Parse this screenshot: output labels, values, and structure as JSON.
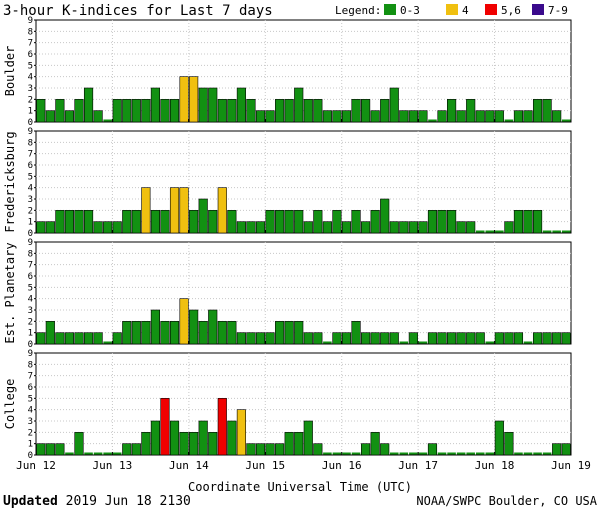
{
  "chart_data": {
    "type": "bar",
    "title": "3-hour K-indices for Last 7 days",
    "legend": {
      "label": "Legend:",
      "placement": "top-right",
      "items": [
        {
          "label": "0-3",
          "color": "#129112"
        },
        {
          "label": "4",
          "color": "#f0c010"
        },
        {
          "label": "5,6",
          "color": "#f00000"
        },
        {
          "label": "7-9",
          "color": "#3a0a8c"
        }
      ]
    },
    "xlabel": "Coordinate Universal Time (UTC)",
    "x_tick_labels": [
      "Jun 12",
      "Jun 13",
      "Jun 14",
      "Jun 15",
      "Jun 16",
      "Jun 17",
      "Jun 18",
      "Jun 19"
    ],
    "ylim": [
      0,
      9
    ],
    "y_ticks": [
      0,
      1,
      2,
      3,
      4,
      5,
      6,
      7,
      8,
      9
    ],
    "bars_per_day": 8,
    "grid": true,
    "series": [
      {
        "name": "Boulder",
        "values": [
          2,
          1,
          2,
          1,
          2,
          3,
          1,
          0,
          2,
          2,
          2,
          2,
          3,
          2,
          2,
          4,
          4,
          3,
          3,
          2,
          2,
          3,
          2,
          1,
          1,
          2,
          2,
          3,
          2,
          2,
          1,
          1,
          1,
          2,
          2,
          1,
          2,
          3,
          1,
          1,
          1,
          0,
          1,
          2,
          1,
          2,
          1,
          1,
          1,
          0,
          1,
          1,
          2,
          2,
          1,
          0
        ]
      },
      {
        "name": "Fredericksburg",
        "values": [
          1,
          1,
          2,
          2,
          2,
          2,
          1,
          1,
          1,
          2,
          2,
          4,
          2,
          2,
          4,
          4,
          2,
          3,
          2,
          4,
          2,
          1,
          1,
          1,
          2,
          2,
          2,
          2,
          1,
          2,
          1,
          2,
          1,
          2,
          1,
          2,
          3,
          1,
          1,
          1,
          1,
          2,
          2,
          2,
          1,
          1,
          0,
          0,
          0,
          1,
          2,
          2,
          2,
          0,
          0,
          0
        ]
      },
      {
        "name": "Est. Planetary",
        "values": [
          1,
          2,
          1,
          1,
          1,
          1,
          1,
          0,
          1,
          2,
          2,
          2,
          3,
          2,
          2,
          4,
          3,
          2,
          3,
          2,
          2,
          1,
          1,
          1,
          1,
          2,
          2,
          2,
          1,
          1,
          0,
          1,
          1,
          2,
          1,
          1,
          1,
          1,
          0,
          1,
          0,
          1,
          1,
          1,
          1,
          1,
          1,
          0,
          1,
          1,
          1,
          0,
          1,
          1,
          1,
          1
        ]
      },
      {
        "name": "College",
        "values": [
          1,
          1,
          1,
          0,
          2,
          0,
          0,
          0,
          0,
          1,
          1,
          2,
          3,
          5,
          3,
          2,
          2,
          3,
          2,
          5,
          3,
          4,
          1,
          1,
          1,
          1,
          2,
          2,
          3,
          1,
          0,
          0,
          0,
          0,
          1,
          2,
          1,
          0,
          0,
          0,
          0,
          1,
          0,
          0,
          0,
          0,
          0,
          0,
          3,
          2,
          0,
          0,
          0,
          0,
          1,
          1
        ]
      }
    ]
  },
  "footer": {
    "updated_label": "Updated",
    "updated_value": "2019 Jun 18 2130",
    "credit": "NOAA/SWPC Boulder, CO USA"
  }
}
